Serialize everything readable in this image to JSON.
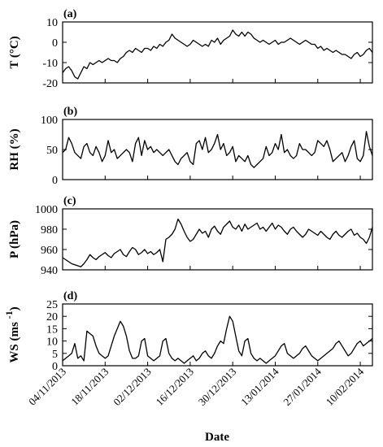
{
  "chart_data": [
    {
      "panel_label": "(a)",
      "type": "line",
      "ylabel": "T (°C)",
      "ylim": [
        -20,
        10
      ],
      "yticks": [
        -20,
        -10,
        0,
        10
      ],
      "x": [
        "04/11/2013",
        "05/11/2013",
        "06/11/2013",
        "07/11/2013",
        "08/11/2013",
        "09/11/2013",
        "10/11/2013",
        "11/11/2013",
        "12/11/2013",
        "13/11/2013",
        "14/11/2013",
        "15/11/2013",
        "16/11/2013",
        "17/11/2013",
        "18/11/2013",
        "19/11/2013",
        "20/11/2013",
        "21/11/2013",
        "22/11/2013",
        "23/11/2013",
        "24/11/2013",
        "25/11/2013",
        "26/11/2013",
        "27/11/2013",
        "28/11/2013",
        "29/11/2013",
        "30/11/2013",
        "01/12/2013",
        "02/12/2013",
        "03/12/2013",
        "04/12/2013",
        "05/12/2013",
        "06/12/2013",
        "07/12/2013",
        "08/12/2013",
        "09/12/2013",
        "10/12/2013",
        "11/12/2013",
        "12/12/2013",
        "13/12/2013",
        "14/12/2013",
        "15/12/2013",
        "16/12/2013",
        "17/12/2013",
        "18/12/2013",
        "19/12/2013",
        "20/12/2013",
        "21/12/2013",
        "22/12/2013",
        "23/12/2013",
        "24/12/2013",
        "25/12/2013",
        "26/12/2013",
        "27/12/2013",
        "28/12/2013",
        "29/12/2013",
        "30/12/2013",
        "31/12/2013",
        "01/01/2014",
        "02/01/2014",
        "03/01/2014",
        "04/01/2014",
        "05/01/2014",
        "06/01/2014",
        "07/01/2014",
        "08/01/2014",
        "09/01/2014",
        "10/01/2014",
        "11/01/2014",
        "12/01/2014",
        "13/01/2014",
        "14/01/2014",
        "15/01/2014",
        "16/01/2014",
        "17/01/2014",
        "18/01/2014",
        "19/01/2014",
        "20/01/2014",
        "21/01/2014",
        "22/01/2014",
        "23/01/2014",
        "24/01/2014",
        "25/01/2014",
        "26/01/2014",
        "27/01/2014",
        "28/01/2014",
        "29/01/2014",
        "30/01/2014",
        "31/01/2014",
        "01/02/2014",
        "02/02/2014",
        "03/02/2014",
        "04/02/2014",
        "05/02/2014",
        "06/02/2014",
        "07/02/2014",
        "08/02/2014",
        "09/02/2014",
        "10/02/2014",
        "11/02/2014",
        "12/02/2014",
        "13/02/2014",
        "14/02/2014"
      ],
      "values": [
        -15,
        -13,
        -12,
        -14,
        -17,
        -18,
        -15,
        -12,
        -13,
        -10,
        -11,
        -10,
        -9,
        -10,
        -9,
        -8,
        -9,
        -9,
        -10,
        -8,
        -7,
        -5,
        -4,
        -5,
        -3,
        -4,
        -5,
        -3,
        -3,
        -4,
        -2,
        -3,
        -1,
        -2,
        0,
        1,
        4,
        2,
        1,
        0,
        -1,
        -2,
        -1,
        1,
        0,
        -1,
        -2,
        -1,
        -2,
        1,
        0,
        2,
        -1,
        1,
        2,
        3,
        6,
        4,
        3,
        5,
        3,
        5,
        4,
        2,
        1,
        0,
        1,
        0,
        -1,
        0,
        1,
        -1,
        0,
        0,
        1,
        2,
        1,
        0,
        -1,
        0,
        1,
        0,
        -1,
        -1,
        -3,
        -2,
        -4,
        -3,
        -4,
        -5,
        -4,
        -5,
        -6,
        -6,
        -7,
        -8,
        -6,
        -5,
        -7,
        -6,
        -4,
        -3,
        -5
      ]
    },
    {
      "panel_label": "(b)",
      "type": "line",
      "ylabel": "RH (%)",
      "ylim": [
        0,
        100
      ],
      "yticks": [
        0,
        50,
        100
      ],
      "x": "same as panel (a)",
      "values": [
        45,
        50,
        70,
        60,
        45,
        40,
        35,
        55,
        60,
        45,
        40,
        55,
        45,
        30,
        40,
        65,
        45,
        50,
        35,
        40,
        45,
        50,
        45,
        30,
        60,
        70,
        40,
        65,
        50,
        55,
        45,
        50,
        45,
        40,
        45,
        50,
        40,
        30,
        25,
        35,
        40,
        45,
        30,
        25,
        60,
        65,
        50,
        70,
        45,
        50,
        60,
        75,
        50,
        60,
        40,
        45,
        55,
        30,
        40,
        35,
        30,
        40,
        25,
        20,
        25,
        30,
        35,
        55,
        40,
        45,
        60,
        50,
        75,
        45,
        50,
        40,
        35,
        40,
        60,
        50,
        50,
        45,
        40,
        45,
        65,
        60,
        55,
        65,
        50,
        30,
        35,
        40,
        45,
        30,
        40,
        55,
        65,
        35,
        30,
        40,
        80,
        55,
        40
      ]
    },
    {
      "panel_label": "(c)",
      "type": "line",
      "ylabel": "P (hPa)",
      "ylim": [
        940,
        1000
      ],
      "yticks": [
        940,
        960,
        980,
        1000
      ],
      "x": "same as panel (a)",
      "values": [
        952,
        950,
        948,
        946,
        945,
        944,
        943,
        946,
        950,
        955,
        952,
        950,
        953,
        955,
        957,
        954,
        952,
        956,
        958,
        960,
        955,
        953,
        958,
        962,
        960,
        955,
        957,
        960,
        956,
        958,
        955,
        957,
        960,
        948,
        970,
        972,
        975,
        980,
        990,
        985,
        978,
        972,
        968,
        970,
        975,
        980,
        976,
        978,
        972,
        980,
        983,
        978,
        975,
        982,
        985,
        988,
        982,
        980,
        984,
        978,
        985,
        980,
        982,
        984,
        986,
        980,
        982,
        978,
        982,
        986,
        980,
        984,
        982,
        978,
        975,
        980,
        982,
        978,
        975,
        972,
        975,
        980,
        978,
        976,
        974,
        978,
        975,
        972,
        970,
        975,
        978,
        974,
        972,
        975,
        978,
        980,
        974,
        976,
        972,
        970,
        966,
        972,
        982
      ]
    },
    {
      "panel_label": "(d)",
      "type": "line",
      "ylabel": "WS (ms",
      "ylabel_superscript": "-1",
      "ylabel_suffix": ")",
      "ylim": [
        0,
        25
      ],
      "yticks": [
        0,
        5,
        10,
        15,
        20,
        25
      ],
      "x": "same as panel (a)",
      "values": [
        2,
        3,
        4,
        5,
        9,
        3,
        4,
        2,
        14,
        13,
        12,
        8,
        5,
        4,
        3,
        4,
        8,
        12,
        15,
        18,
        16,
        12,
        6,
        3,
        3,
        4,
        10,
        11,
        4,
        3,
        2,
        3,
        4,
        10,
        11,
        5,
        3,
        2,
        3,
        2,
        1,
        2,
        3,
        4,
        2,
        3,
        5,
        6,
        4,
        3,
        5,
        8,
        10,
        9,
        15,
        20,
        18,
        12,
        6,
        4,
        10,
        11,
        5,
        3,
        2,
        3,
        2,
        1,
        2,
        3,
        4,
        6,
        8,
        9,
        5,
        4,
        3,
        4,
        5,
        7,
        8,
        6,
        4,
        3,
        2,
        3,
        4,
        5,
        6,
        7,
        9,
        10,
        8,
        6,
        4,
        5,
        7,
        9,
        10,
        8,
        9,
        10,
        11
      ]
    }
  ],
  "x_axis": {
    "label": "Date",
    "tick_labels": [
      "04/11/2013",
      "18/11/2013",
      "02/12/2013",
      "16/12/2013",
      "30/12/2013",
      "13/01/2014",
      "27/01/2014",
      "10/02/2014"
    ]
  }
}
